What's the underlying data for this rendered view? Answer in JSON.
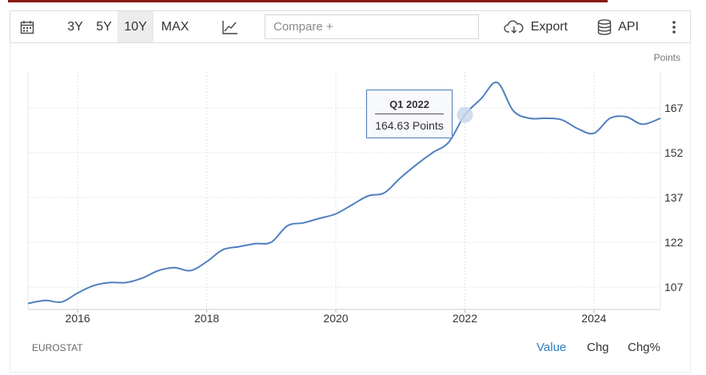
{
  "toolbar": {
    "ranges": [
      "3Y",
      "5Y",
      "10Y",
      "MAX"
    ],
    "active_range": "10Y",
    "compare_placeholder": "Compare +",
    "export_label": "Export",
    "api_label": "API"
  },
  "chart_data": {
    "type": "line",
    "ylabel": "Points",
    "y_ticks": [
      107,
      122,
      137,
      152,
      167
    ],
    "ylim": [
      99.5,
      179
    ],
    "x_ticks": [
      "2016",
      "2018",
      "2020",
      "2022",
      "2024"
    ],
    "xlim": [
      2015.23,
      2025.03
    ],
    "grid": true,
    "series": [
      {
        "color": "#4f7fbf",
        "x": [
          2015.23,
          2015.5,
          2015.75,
          2016.0,
          2016.25,
          2016.5,
          2016.75,
          2017.0,
          2017.25,
          2017.5,
          2017.75,
          2018.0,
          2018.25,
          2018.5,
          2018.75,
          2019.0,
          2019.25,
          2019.5,
          2019.75,
          2020.0,
          2020.25,
          2020.5,
          2020.75,
          2021.0,
          2021.25,
          2021.5,
          2021.75,
          2022.0,
          2022.25,
          2022.5,
          2022.75,
          2023.0,
          2023.25,
          2023.5,
          2023.75,
          2024.0,
          2024.25,
          2024.5,
          2024.75,
          2025.03
        ],
        "y": [
          101.5,
          102.5,
          102.0,
          105.0,
          107.5,
          108.5,
          108.5,
          110.0,
          112.5,
          113.5,
          112.5,
          115.5,
          119.5,
          120.5,
          121.5,
          122.0,
          127.5,
          128.5,
          130.0,
          131.5,
          134.5,
          137.5,
          138.5,
          143.5,
          148.0,
          152.0,
          155.5,
          164.63,
          170.0,
          175.5,
          166.0,
          163.5,
          163.5,
          163.0,
          160.0,
          158.5,
          163.5,
          164.0,
          161.5,
          163.5
        ]
      }
    ],
    "highlight": {
      "label": "Q1 2022",
      "value_text": "164.63 Points",
      "x": 2022.0,
      "y": 164.63
    }
  },
  "footer": {
    "source": "EUROSTAT",
    "views": [
      "Value",
      "Chg",
      "Chg%"
    ],
    "active_view": "Value"
  }
}
